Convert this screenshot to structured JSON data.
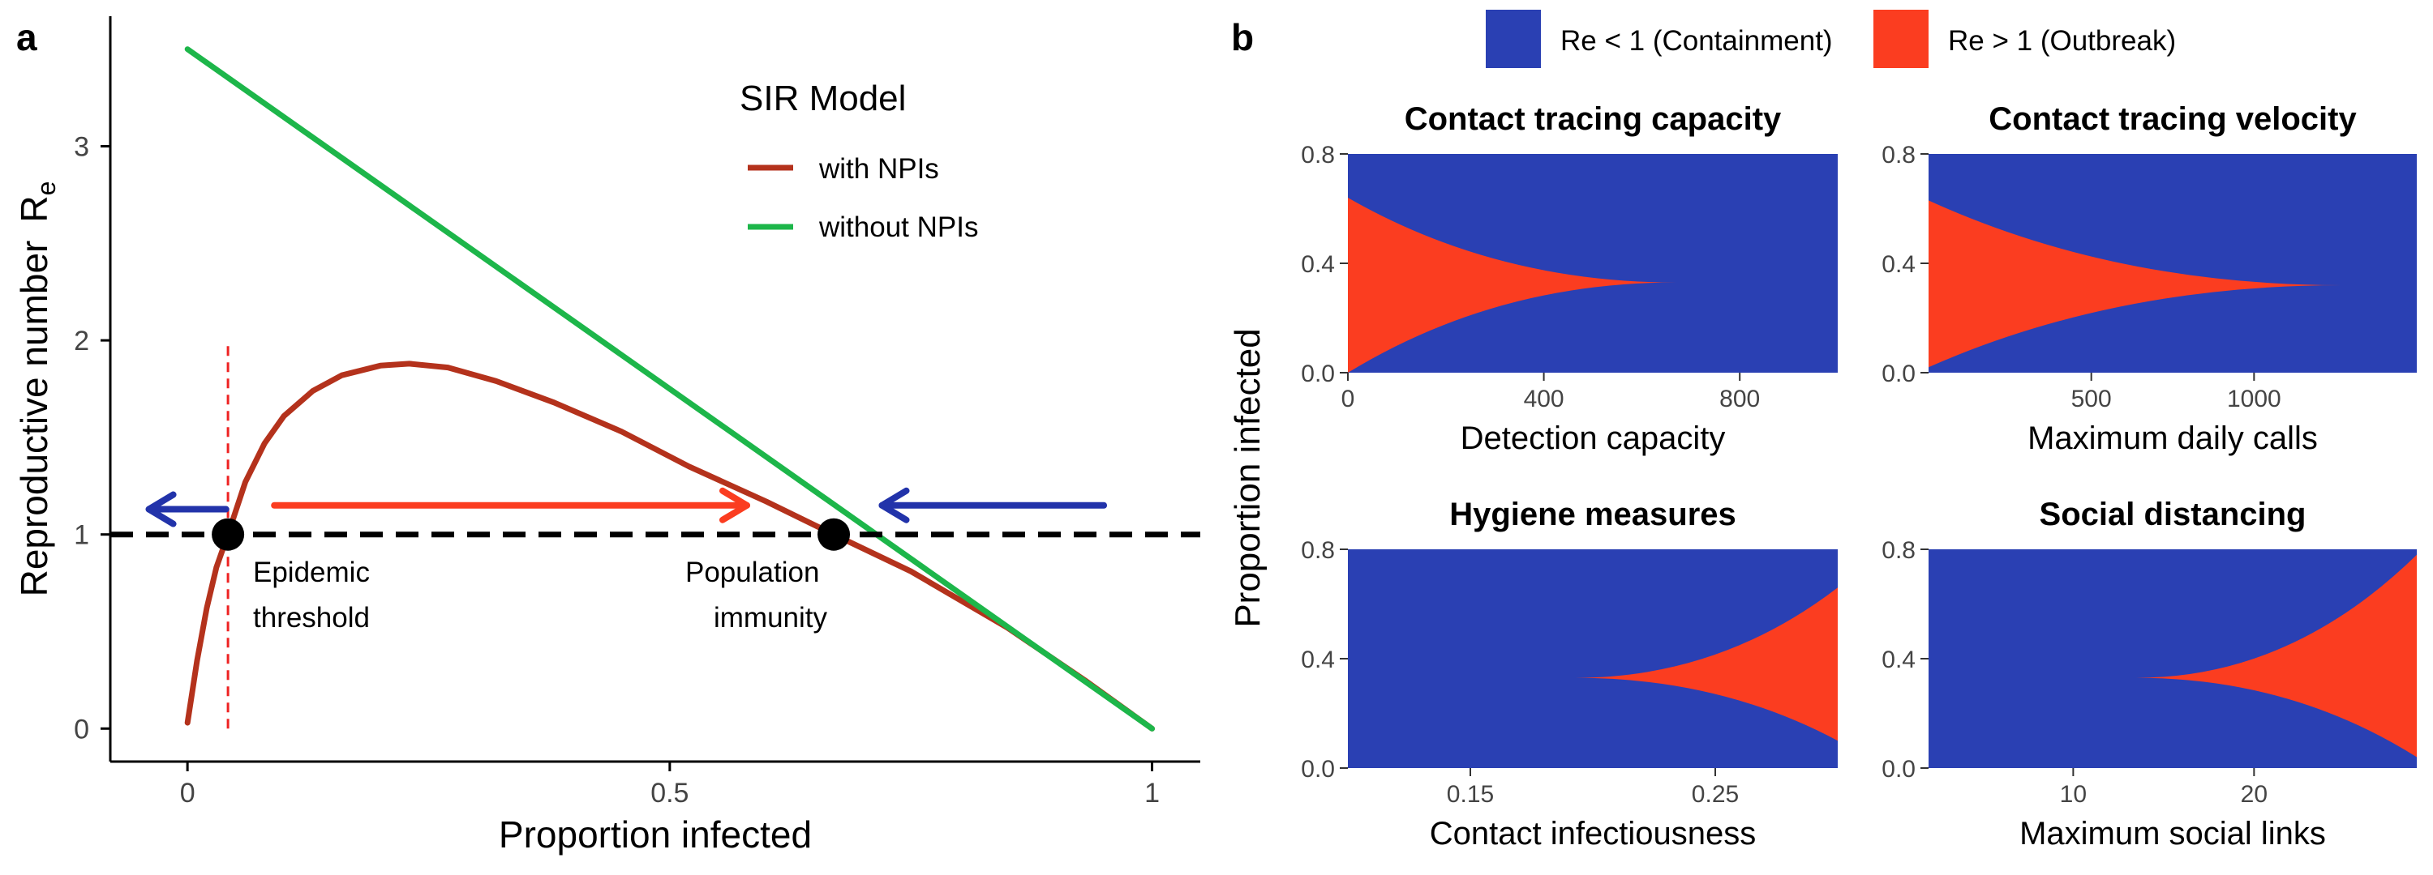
{
  "colors": {
    "containment": "#2a40b3",
    "outbreak": "#fb3d20",
    "with_npis": "#b4321c",
    "without_npis": "#1db64a",
    "threshold_line": "#ee2222",
    "arrow_blue": "#2233aa",
    "arrow_red": "#fb3d20"
  },
  "panel_a": {
    "letter": "a",
    "legend_title": "SIR Model",
    "annotations": {
      "epidemic_line1": "Epidemic",
      "epidemic_line2": "threshold",
      "population_line1": "Population",
      "population_line2": "immunity"
    }
  },
  "panel_b": {
    "letter": "b",
    "ylabel": "Proportion infected"
  },
  "chart_data": [
    {
      "type": "line",
      "xlabel": "Proportion infected",
      "ylabel": "Reproductive number",
      "ylabel_subscript_base": "R",
      "ylabel_subscript": "e",
      "xlim": [
        -0.08,
        1.05
      ],
      "ylim": [
        -0.17,
        3.67
      ],
      "xticks": [
        0,
        0.5,
        1
      ],
      "xtick_labels": [
        "0",
        "0.5",
        "1"
      ],
      "yticks": [
        0,
        1,
        2,
        3
      ],
      "ytick_labels": [
        "0",
        "1",
        "2",
        "3"
      ],
      "grid": false,
      "legend_placement": "top-right",
      "series": [
        {
          "name": "with NPIs",
          "x": [
            0,
            0.01,
            0.02,
            0.03,
            0.042,
            0.06,
            0.08,
            0.1,
            0.13,
            0.16,
            0.2,
            0.23,
            0.27,
            0.32,
            0.38,
            0.45,
            0.52,
            0.6,
            0.67,
            0.75,
            0.85,
            0.93,
            1.0
          ],
          "y": [
            0.03,
            0.35,
            0.62,
            0.83,
            1.0,
            1.27,
            1.47,
            1.61,
            1.74,
            1.82,
            1.87,
            1.88,
            1.86,
            1.79,
            1.68,
            1.53,
            1.35,
            1.17,
            1.0,
            0.81,
            0.52,
            0.25,
            0.0
          ]
        },
        {
          "name": "without NPIs",
          "x": [
            0,
            1.0
          ],
          "y": [
            3.5,
            0.0
          ]
        }
      ],
      "reference_lines": [
        {
          "axis": "y",
          "value": 1,
          "style": "dashed"
        },
        {
          "axis": "x",
          "value": 0.042,
          "style": "dashed",
          "y_range": [
            0,
            2.0
          ]
        }
      ],
      "points": [
        {
          "x": 0.042,
          "y": 1.0
        },
        {
          "x": 0.67,
          "y": 1.0
        }
      ],
      "arrows": [
        {
          "from": [
            0.04,
            1.13
          ],
          "to": [
            -0.04,
            1.13
          ],
          "color": "arrow_blue"
        },
        {
          "from": [
            0.09,
            1.15
          ],
          "to": [
            0.58,
            1.15
          ],
          "color": "arrow_red"
        },
        {
          "from": [
            0.95,
            1.15
          ],
          "to": [
            0.72,
            1.15
          ],
          "color": "arrow_blue"
        }
      ]
    },
    {
      "type": "heatmap",
      "legend": [
        "Re < 1 (Containment)",
        "Re > 1 (Outbreak)"
      ],
      "ylabel": "Proportion infected",
      "panels": [
        {
          "title": "Contact tracing capacity",
          "xlabel": "Detection capacity",
          "xlim": [
            0,
            1000
          ],
          "ylim": [
            0,
            0.8
          ],
          "xticks": [
            0,
            400,
            800
          ],
          "xtick_labels": [
            "0",
            "400",
            "800"
          ],
          "yticks": [
            0,
            0.4,
            0.8
          ],
          "ytick_labels": [
            "0.0",
            "0.4",
            "0.8"
          ],
          "outbreak_region": {
            "opens": "left",
            "vertex": [
              670,
              0.33
            ],
            "edge_x": 0,
            "edge_lower": 0.0,
            "edge_upper": 0.64
          }
        },
        {
          "title": "Contact tracing velocity",
          "xlabel": "Maximum daily calls",
          "xlim": [
            0,
            1500
          ],
          "ylim": [
            0,
            0.8
          ],
          "xticks": [
            500,
            1000
          ],
          "xtick_labels": [
            "500",
            "1000"
          ],
          "yticks": [
            0,
            0.4,
            0.8
          ],
          "ytick_labels": [
            "0.0",
            "0.4",
            "0.8"
          ],
          "outbreak_region": {
            "opens": "left",
            "vertex": [
              1270,
              0.32
            ],
            "edge_x": 0,
            "edge_lower": 0.02,
            "edge_upper": 0.63
          }
        },
        {
          "title": "Hygiene measures",
          "xlabel": "Contact infectiousness",
          "xlim": [
            0.1,
            0.3
          ],
          "ylim": [
            0,
            0.8
          ],
          "xticks": [
            0.15,
            0.25
          ],
          "xtick_labels": [
            "0.15",
            "0.25"
          ],
          "yticks": [
            0,
            0.4,
            0.8
          ],
          "ytick_labels": [
            "0.0",
            "0.4",
            "0.8"
          ],
          "outbreak_region": {
            "opens": "right",
            "vertex": [
              0.193,
              0.33
            ],
            "edge_x": 0.3,
            "edge_lower": 0.1,
            "edge_upper": 0.66
          }
        },
        {
          "title": "Social distancing",
          "xlabel": "Maximum social links",
          "xlim": [
            2,
            29
          ],
          "ylim": [
            0,
            0.8
          ],
          "xticks": [
            10,
            20
          ],
          "xtick_labels": [
            "10",
            "20"
          ],
          "yticks": [
            0,
            0.4,
            0.8
          ],
          "ytick_labels": [
            "0.0",
            "0.4",
            "0.8"
          ],
          "outbreak_region": {
            "opens": "right",
            "vertex": [
              13.5,
              0.33
            ],
            "edge_x": 29,
            "edge_lower": 0.04,
            "edge_upper": 0.78
          }
        }
      ]
    }
  ]
}
